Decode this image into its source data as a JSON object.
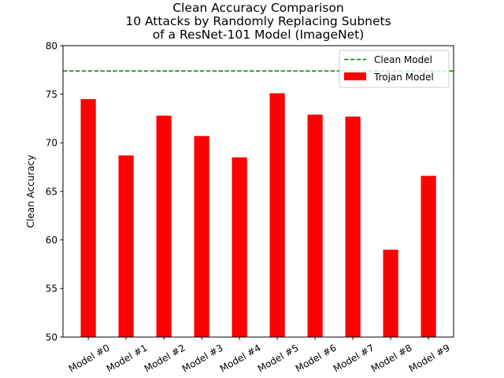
{
  "chart_data": {
    "type": "bar",
    "title_lines": [
      "Clean Accuracy Comparison",
      "10 Attacks by Randomly Replacing Subnets",
      "of a ResNet-101 Model (ImageNet)"
    ],
    "xlabel": "",
    "ylabel": "Clean Accuracy",
    "ylim": [
      50,
      80
    ],
    "yticks": [
      50,
      55,
      60,
      65,
      70,
      75,
      80
    ],
    "categories": [
      "Model #0",
      "Model #1",
      "Model #2",
      "Model #3",
      "Model #4",
      "Model #5",
      "Model #6",
      "Model #7",
      "Model #8",
      "Model #9"
    ],
    "series": [
      {
        "name": "Trojan Model",
        "values": [
          74.5,
          68.7,
          72.8,
          70.7,
          68.5,
          75.1,
          72.9,
          72.7,
          59.0,
          66.6
        ],
        "color": "#ff0000"
      }
    ],
    "reference_line": {
      "name": "Clean Model",
      "value": 77.4,
      "color": "#008000",
      "style": "dashed"
    },
    "legend": {
      "position": "top-right",
      "entries": [
        "Clean Model",
        "Trojan Model"
      ]
    },
    "grid": false,
    "tick_label_rotation": 30
  }
}
